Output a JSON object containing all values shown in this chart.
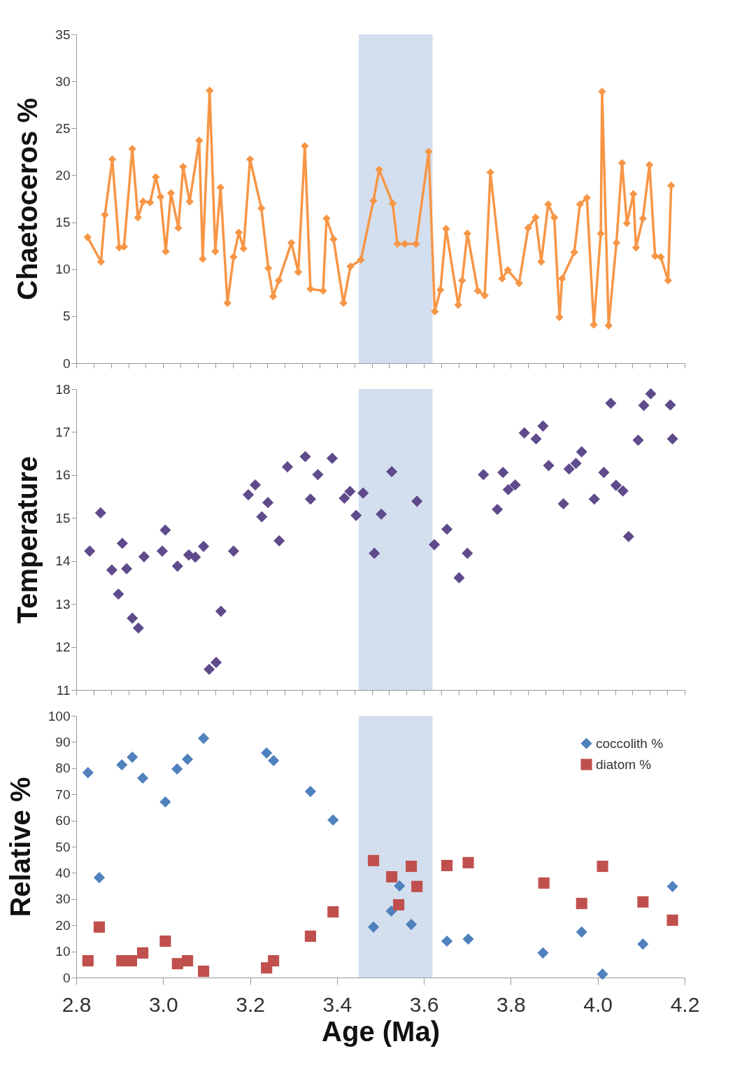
{
  "chart_data": [
    {
      "type": "line",
      "ylabel": "Chaetoceros %",
      "xlim": [
        2.8,
        4.2
      ],
      "ylim": [
        0,
        35
      ],
      "yticks": [
        0,
        5,
        10,
        15,
        20,
        25,
        30,
        35
      ],
      "tick_labels": "y",
      "marker": "diamond",
      "xticks": [
        {
          "value": 2.8,
          "label": null
        },
        {
          "value": 2.84,
          "label": null
        },
        {
          "value": 2.88,
          "label": null
        },
        {
          "value": 2.92,
          "label": null
        },
        {
          "value": 2.96,
          "label": null
        },
        {
          "value": 3.0,
          "label": null
        },
        {
          "value": 3.04,
          "label": null
        },
        {
          "value": 3.08,
          "label": null
        },
        {
          "value": 3.12,
          "label": null
        },
        {
          "value": 3.16,
          "label": null
        },
        {
          "value": 3.2,
          "label": null
        },
        {
          "value": 3.24,
          "label": null
        },
        {
          "value": 3.28,
          "label": null
        },
        {
          "value": 3.32,
          "label": null
        },
        {
          "value": 3.36,
          "label": null
        },
        {
          "value": 3.4,
          "label": null
        },
        {
          "value": 3.44,
          "label": null
        },
        {
          "value": 3.48,
          "label": null
        },
        {
          "value": 3.52,
          "label": null
        },
        {
          "value": 3.56,
          "label": null
        },
        {
          "value": 3.6,
          "label": null
        },
        {
          "value": 3.64,
          "label": null
        },
        {
          "value": 3.68,
          "label": null
        },
        {
          "value": 3.72,
          "label": null
        },
        {
          "value": 3.76,
          "label": null
        },
        {
          "value": 3.8,
          "label": null
        },
        {
          "value": 3.84,
          "label": null
        },
        {
          "value": 3.88,
          "label": null
        },
        {
          "value": 3.92,
          "label": null
        },
        {
          "value": 3.96,
          "label": null
        },
        {
          "value": 4.0,
          "label": null
        },
        {
          "value": 4.04,
          "label": null
        },
        {
          "value": 4.08,
          "label": null
        },
        {
          "value": 4.12,
          "label": null
        },
        {
          "value": 4.16,
          "label": null
        },
        {
          "value": 4.2,
          "label": null
        }
      ],
      "bands": [
        {
          "axis": "x",
          "from": 3.45,
          "to": 3.62,
          "color": "#d3dfef"
        }
      ],
      "series": [
        {
          "color": "#f79646",
          "x": [
            2.826,
            2.857,
            2.866,
            2.883,
            2.899,
            2.91,
            2.929,
            2.942,
            2.954,
            2.97,
            2.983,
            2.994,
            3.006,
            3.018,
            3.035,
            3.046,
            3.061,
            3.083,
            3.091,
            3.107,
            3.12,
            3.132,
            3.148,
            3.162,
            3.174,
            3.185,
            3.2,
            3.226,
            3.242,
            3.253,
            3.266,
            3.295,
            3.311,
            3.326,
            3.339,
            3.368,
            3.376,
            3.392,
            3.415,
            3.431,
            3.455,
            3.484,
            3.497,
            3.528,
            3.539,
            3.556,
            3.582,
            3.611,
            3.625,
            3.638,
            3.651,
            3.679,
            3.688,
            3.7,
            3.724,
            3.74,
            3.753,
            3.78,
            3.793,
            3.819,
            3.84,
            3.857,
            3.87,
            3.886,
            3.9,
            3.912,
            3.918,
            3.946,
            3.959,
            3.975,
            3.991,
            4.007,
            4.01,
            4.025,
            4.043,
            4.056,
            4.067,
            4.082,
            4.088,
            4.104,
            4.119,
            4.132,
            4.145,
            4.162,
            4.169
          ],
          "values": [
            13.4,
            10.8,
            15.8,
            21.7,
            12.3,
            12.4,
            22.8,
            15.5,
            17.2,
            17.1,
            19.8,
            17.7,
            11.9,
            18.1,
            14.4,
            20.9,
            17.2,
            23.7,
            11.1,
            29.0,
            11.9,
            18.7,
            6.4,
            11.3,
            13.9,
            12.2,
            21.7,
            16.5,
            10.1,
            7.1,
            8.8,
            12.8,
            9.7,
            23.1,
            7.9,
            7.7,
            15.4,
            13.2,
            6.4,
            10.3,
            11.0,
            17.3,
            20.6,
            17.0,
            12.7,
            12.7,
            12.7,
            22.5,
            5.5,
            7.8,
            14.3,
            6.2,
            8.8,
            13.8,
            7.7,
            7.2,
            20.3,
            9.0,
            9.9,
            8.5,
            14.4,
            15.5,
            10.8,
            16.9,
            15.5,
            4.9,
            9.0,
            11.8,
            16.9,
            17.6,
            4.1,
            13.8,
            28.9,
            4.0,
            12.8,
            21.3,
            14.9,
            18.0,
            12.3,
            15.4,
            21.1,
            11.4,
            11.3,
            8.8,
            18.9
          ]
        }
      ]
    },
    {
      "type": "scatter",
      "ylabel": "Temperature",
      "xlim": [
        2.8,
        4.2
      ],
      "ylim": [
        11,
        18
      ],
      "yticks": [
        11,
        12,
        13,
        14,
        15,
        16,
        17,
        18
      ],
      "tick_labels": "y",
      "marker": "diamond",
      "xticks": [
        {
          "value": 2.8,
          "label": null
        },
        {
          "value": 2.84,
          "label": null
        },
        {
          "value": 2.88,
          "label": null
        },
        {
          "value": 2.92,
          "label": null
        },
        {
          "value": 2.96,
          "label": null
        },
        {
          "value": 3.0,
          "label": null
        },
        {
          "value": 3.04,
          "label": null
        },
        {
          "value": 3.08,
          "label": null
        },
        {
          "value": 3.12,
          "label": null
        },
        {
          "value": 3.16,
          "label": null
        },
        {
          "value": 3.2,
          "label": null
        },
        {
          "value": 3.24,
          "label": null
        },
        {
          "value": 3.28,
          "label": null
        },
        {
          "value": 3.32,
          "label": null
        },
        {
          "value": 3.36,
          "label": null
        },
        {
          "value": 3.4,
          "label": null
        },
        {
          "value": 3.44,
          "label": null
        },
        {
          "value": 3.48,
          "label": null
        },
        {
          "value": 3.52,
          "label": null
        },
        {
          "value": 3.56,
          "label": null
        },
        {
          "value": 3.6,
          "label": null
        },
        {
          "value": 3.64,
          "label": null
        },
        {
          "value": 3.68,
          "label": null
        },
        {
          "value": 3.72,
          "label": null
        },
        {
          "value": 3.76,
          "label": null
        },
        {
          "value": 3.8,
          "label": null
        },
        {
          "value": 3.84,
          "label": null
        },
        {
          "value": 3.88,
          "label": null
        },
        {
          "value": 3.92,
          "label": null
        },
        {
          "value": 3.96,
          "label": null
        },
        {
          "value": 4.0,
          "label": null
        },
        {
          "value": 4.04,
          "label": null
        },
        {
          "value": 4.08,
          "label": null
        },
        {
          "value": 4.12,
          "label": null
        },
        {
          "value": 4.16,
          "label": null
        },
        {
          "value": 4.2,
          "label": null
        }
      ],
      "bands": [
        {
          "axis": "x",
          "from": 3.45,
          "to": 3.62,
          "color": "#d3dfef"
        }
      ],
      "series": [
        {
          "color": "#5f4b8b",
          "x": [
            2.831,
            2.856,
            2.882,
            2.897,
            2.906,
            2.916,
            2.929,
            2.943,
            2.956,
            2.998,
            3.005,
            3.033,
            3.059,
            3.074,
            3.093,
            3.106,
            3.122,
            3.133,
            3.162,
            3.196,
            3.212,
            3.227,
            3.241,
            3.267,
            3.286,
            3.327,
            3.339,
            3.356,
            3.389,
            3.417,
            3.43,
            3.444,
            3.46,
            3.486,
            3.502,
            3.526,
            3.584,
            3.624,
            3.653,
            3.681,
            3.7,
            3.737,
            3.769,
            3.782,
            3.794,
            3.81,
            3.831,
            3.858,
            3.874,
            3.887,
            3.921,
            3.934,
            3.95,
            3.963,
            3.992,
            4.014,
            4.03,
            4.042,
            4.058,
            4.071,
            4.093,
            4.106,
            4.122,
            4.167,
            4.172
          ],
          "values": [
            14.23,
            15.12,
            13.79,
            13.23,
            14.41,
            13.82,
            12.67,
            12.44,
            14.1,
            14.23,
            14.72,
            13.88,
            14.14,
            14.09,
            14.34,
            11.48,
            11.64,
            12.83,
            14.23,
            15.54,
            15.77,
            15.03,
            15.36,
            14.47,
            16.19,
            16.43,
            15.44,
            16.01,
            16.39,
            15.46,
            15.62,
            15.06,
            15.58,
            14.18,
            15.09,
            16.08,
            15.39,
            14.38,
            14.74,
            13.61,
            14.18,
            16.01,
            15.2,
            16.06,
            15.66,
            15.77,
            16.98,
            16.84,
            17.14,
            16.22,
            15.33,
            16.14,
            16.27,
            16.54,
            15.44,
            16.06,
            17.67,
            15.76,
            15.63,
            14.57,
            16.81,
            17.62,
            17.89,
            17.63,
            16.84
          ]
        }
      ]
    },
    {
      "type": "scatter",
      "ylabel": "Relative %",
      "xlabel": "Age (Ma)",
      "xlim": [
        2.8,
        4.2
      ],
      "ylim": [
        0,
        100
      ],
      "yticks": [
        0,
        10,
        20,
        30,
        40,
        50,
        60,
        70,
        80,
        90,
        100
      ],
      "xticks": [
        2.8,
        {
          "value": 3.0,
          "label": "3.0"
        },
        3.2,
        3.4,
        3.6,
        3.8,
        {
          "value": 4.0,
          "label": "4.0"
        },
        4.2
      ],
      "legend": "top right",
      "bands": [
        {
          "axis": "x",
          "from": 3.45,
          "to": 3.62,
          "color": "#d3dfef"
        }
      ],
      "series": [
        {
          "name": "coccolith %",
          "color": "#4f81bd",
          "marker": "diamond",
          "x": [
            2.827,
            2.853,
            2.905,
            2.929,
            2.953,
            3.005,
            3.032,
            3.056,
            3.093,
            3.238,
            3.254,
            3.339,
            3.391,
            3.484,
            3.525,
            3.544,
            3.571,
            3.653,
            3.702,
            3.874,
            3.963,
            4.011,
            4.104,
            4.172
          ],
          "values": [
            78.3,
            38.2,
            81.3,
            84.2,
            76.2,
            67.1,
            79.7,
            83.4,
            91.4,
            85.8,
            82.9,
            71.1,
            60.2,
            19.3,
            25.4,
            35.0,
            20.3,
            13.9,
            14.7,
            9.4,
            17.4,
            1.3,
            12.8,
            34.8
          ]
        },
        {
          "name": "diatom %",
          "color": "#c0504d",
          "marker": "square",
          "x": [
            2.827,
            2.853,
            2.905,
            2.927,
            2.953,
            3.005,
            3.033,
            3.056,
            3.093,
            3.238,
            3.254,
            3.339,
            3.391,
            3.484,
            3.526,
            3.542,
            3.571,
            3.584,
            3.653,
            3.702,
            3.876,
            3.963,
            4.011,
            4.104,
            4.172
          ],
          "values": [
            6.4,
            19.3,
            6.4,
            6.4,
            9.4,
            13.9,
            5.3,
            6.4,
            2.4,
            3.7,
            6.4,
            15.8,
            25.1,
            44.7,
            38.5,
            27.8,
            42.5,
            34.8,
            42.8,
            43.9,
            36.1,
            28.3,
            42.5,
            28.9,
            21.9
          ]
        }
      ]
    }
  ]
}
